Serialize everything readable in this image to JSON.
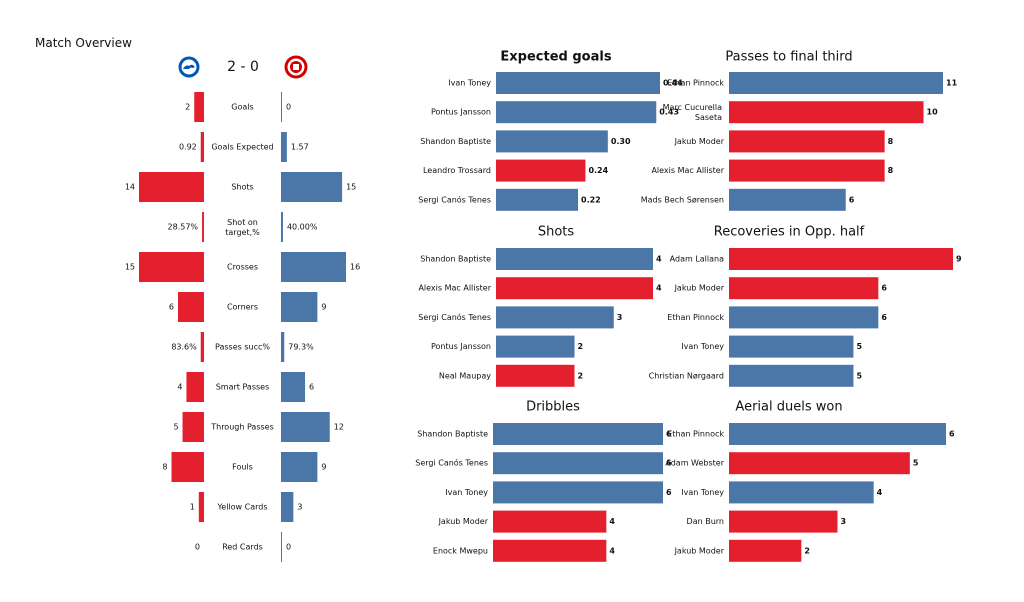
{
  "page_title": "Match Overview",
  "score": "2 - 0",
  "colors": {
    "home": "#e4202f",
    "away": "#4a76a8"
  },
  "icons": {
    "home_badge": "brighton-badge-icon",
    "away_badge": "brentford-badge-icon"
  },
  "chart_data": [
    {
      "type": "bar",
      "title": "",
      "orientation": "mirrored-horizontal",
      "categories": [
        "Goals",
        "Goals Expected",
        "Shots",
        "Shot on target,%",
        "Crosses",
        "Corners",
        "Passes succ%",
        "Smart Passes",
        "Through Passes",
        "Fouls",
        "Yellow Cards",
        "Red Cards"
      ],
      "series": [
        {
          "values": [
            2,
            0.92,
            14,
            28.57,
            15,
            6,
            83.6,
            4,
            5,
            8,
            1,
            0
          ],
          "labels": [
            "2",
            "0.92",
            "14",
            "28.57%",
            "15",
            "6",
            "83.6%",
            "4",
            "5",
            "8",
            "1",
            "0"
          ],
          "bar_fraction": [
            0.15,
            0.05,
            1.0,
            0.03,
            1.0,
            0.4,
            0.05,
            0.27,
            0.33,
            0.5,
            0.08,
            0.0
          ]
        },
        {
          "values": [
            0,
            1.57,
            15,
            40.0,
            16,
            9,
            79.3,
            6,
            12,
            9,
            3,
            0
          ],
          "labels": [
            "0",
            "1.57",
            "15",
            "40.00%",
            "16",
            "9",
            "79.3%",
            "6",
            "12",
            "9",
            "3",
            "0"
          ],
          "bar_fraction": [
            0.0,
            0.09,
            0.94,
            0.03,
            1.0,
            0.56,
            0.05,
            0.37,
            0.75,
            0.56,
            0.19,
            0.0
          ]
        }
      ]
    },
    {
      "type": "bar",
      "title": "Expected goals",
      "title_bold": true,
      "categories": [
        "Ivan Toney",
        "Pontus Jansson",
        "Shandon Baptiste",
        "Leandro Trossard",
        "Sergi Canós Tenes"
      ],
      "values": [
        0.44,
        0.43,
        0.3,
        0.24,
        0.22
      ],
      "labels": [
        "0.44",
        "0.43",
        "0.30",
        "0.24",
        "0.22"
      ],
      "team": [
        "away",
        "away",
        "away",
        "home",
        "away"
      ],
      "xlim": [
        0,
        0.44
      ]
    },
    {
      "type": "bar",
      "title": "Passes to final third",
      "categories": [
        "Ethan Pinnock",
        "Marc Cucurella Saseta",
        "Jakub Moder",
        "Alexis Mac Allister",
        "Mads Bech Sørensen"
      ],
      "values": [
        11,
        10,
        8,
        8,
        6
      ],
      "labels": [
        "11",
        "10",
        "8",
        "8",
        "6"
      ],
      "team": [
        "away",
        "home",
        "home",
        "home",
        "away"
      ],
      "xlim": [
        0,
        11
      ]
    },
    {
      "type": "bar",
      "title": "Shots",
      "categories": [
        "Shandon Baptiste",
        "Alexis Mac Allister",
        "Sergi Canós Tenes",
        "Pontus Jansson",
        "Neal Maupay"
      ],
      "values": [
        4,
        4,
        3,
        2,
        2
      ],
      "labels": [
        "4",
        "4",
        "3",
        "2",
        "2"
      ],
      "team": [
        "away",
        "home",
        "away",
        "away",
        "home"
      ],
      "xlim": [
        0,
        4
      ]
    },
    {
      "type": "bar",
      "title": "Recoveries in Opp. half",
      "categories": [
        "Adam Lallana",
        "Jakub Moder",
        "Ethan Pinnock",
        "Ivan Toney",
        "Christian Nørgaard"
      ],
      "values": [
        9,
        6,
        6,
        5,
        5
      ],
      "labels": [
        "9",
        "6",
        "6",
        "5",
        "5"
      ],
      "team": [
        "home",
        "home",
        "away",
        "away",
        "away"
      ],
      "xlim": [
        0,
        9
      ]
    },
    {
      "type": "bar",
      "title": "Dribbles",
      "categories": [
        "Shandon Baptiste",
        "Sergi Canós Tenes",
        "Ivan Toney",
        "Jakub Moder",
        "Enock Mwepu"
      ],
      "values": [
        6,
        6,
        6,
        4,
        4
      ],
      "labels": [
        "6",
        "6",
        "6",
        "4",
        "4"
      ],
      "team": [
        "away",
        "away",
        "away",
        "home",
        "home"
      ],
      "xlim": [
        0,
        6
      ]
    },
    {
      "type": "bar",
      "title": "Aerial duels won",
      "categories": [
        "Ethan Pinnock",
        "Adam Webster",
        "Ivan Toney",
        "Dan Burn",
        "Jakub Moder"
      ],
      "values": [
        6,
        5,
        4,
        3,
        2
      ],
      "labels": [
        "6",
        "5",
        "4",
        "3",
        "2"
      ],
      "team": [
        "away",
        "home",
        "away",
        "home",
        "home"
      ],
      "xlim": [
        0,
        6
      ]
    }
  ]
}
